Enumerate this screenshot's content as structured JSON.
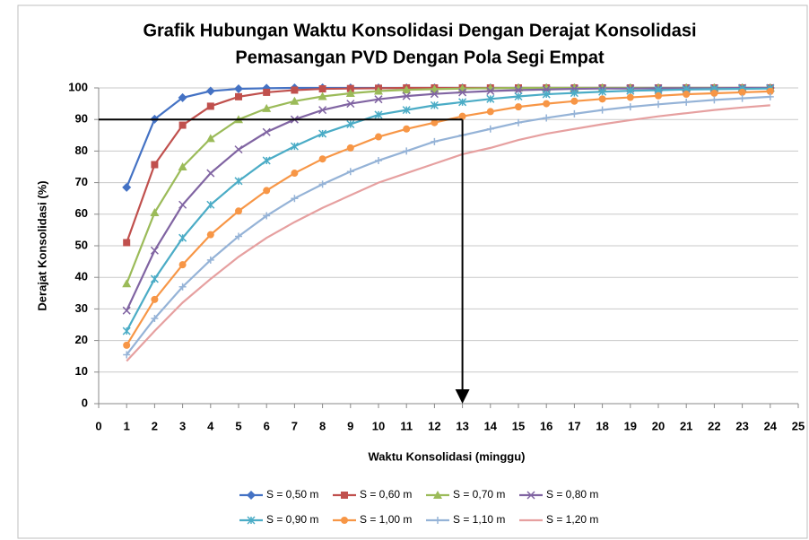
{
  "chart_data": {
    "type": "line",
    "title": [
      "Grafik Hubungan Waktu Konsolidasi Dengan  Derajat Konsolidasi",
      "Pemasangan PVD Dengan Pola Segi Empat"
    ],
    "x_label": "Waktu Konsolidasi (minggu)",
    "y_label": "Derajat Konsolidasi (%)",
    "x": [
      1,
      2,
      3,
      4,
      5,
      6,
      7,
      8,
      9,
      10,
      11,
      12,
      13,
      14,
      15,
      16,
      17,
      18,
      19,
      20,
      21,
      22,
      23,
      24
    ],
    "xlim": [
      0,
      25
    ],
    "xticks": [
      0,
      1,
      2,
      3,
      4,
      5,
      6,
      7,
      8,
      9,
      10,
      11,
      12,
      13,
      14,
      15,
      16,
      17,
      18,
      19,
      20,
      21,
      22,
      23,
      24,
      25
    ],
    "ylim": [
      0,
      100
    ],
    "yticks": [
      0,
      10,
      20,
      30,
      40,
      50,
      60,
      70,
      80,
      90,
      100
    ],
    "grid": true,
    "series": [
      {
        "name": "S = 0,50 m",
        "color": "#4472c4",
        "marker": "diamond",
        "values": [
          68.5,
          90.1,
          96.9,
          99.0,
          99.7,
          99.9,
          100,
          100,
          100,
          100,
          100,
          100,
          100,
          100,
          100,
          100,
          100,
          100,
          100,
          100,
          100,
          100,
          100,
          100
        ]
      },
      {
        "name": "S = 0,60 m",
        "color": "#c0504d",
        "marker": "square",
        "values": [
          51,
          75.7,
          88.2,
          94.2,
          97.2,
          98.6,
          99.3,
          99.7,
          99.8,
          99.9,
          100,
          100,
          100,
          100,
          100,
          100,
          100,
          100,
          100,
          100,
          100,
          100,
          100,
          100
        ]
      },
      {
        "name": "S = 0,70 m",
        "color": "#9bbb59",
        "marker": "triangle",
        "values": [
          38,
          60.5,
          75,
          84,
          90,
          93.5,
          95.8,
          97.3,
          98.3,
          99,
          99.4,
          99.6,
          99.8,
          99.9,
          100,
          100,
          100,
          100,
          100,
          100,
          100,
          100,
          100,
          100
        ]
      },
      {
        "name": "S = 0,80 m",
        "color": "#8064a2",
        "marker": "x",
        "values": [
          29.5,
          48.5,
          63,
          73,
          80.5,
          86,
          90,
          93,
          95,
          96.4,
          97.4,
          98.1,
          98.6,
          99,
          99.3,
          99.5,
          99.7,
          99.8,
          99.8,
          99.9,
          99.9,
          99.9,
          100,
          100
        ]
      },
      {
        "name": "S = 0,90 m",
        "color": "#4bacc6",
        "marker": "star",
        "values": [
          23,
          39.5,
          52.5,
          63,
          70.5,
          77,
          81.5,
          85.5,
          88.5,
          91.5,
          93,
          94.5,
          95.5,
          96.5,
          97.3,
          98,
          98.4,
          98.8,
          99.1,
          99.3,
          99.5,
          99.6,
          99.7,
          99.8
        ]
      },
      {
        "name": "S = 1,00 m",
        "color": "#f79646",
        "marker": "circle",
        "values": [
          18.5,
          33,
          44,
          53.5,
          61,
          67.5,
          73,
          77.5,
          81,
          84.5,
          87,
          89,
          91,
          92.5,
          94,
          95,
          95.8,
          96.5,
          97,
          97.5,
          98,
          98.3,
          98.6,
          98.9
        ]
      },
      {
        "name": "S = 1,10 m",
        "color": "#95b3d7",
        "marker": "plus",
        "values": [
          15.5,
          27,
          37,
          45.5,
          53,
          59.5,
          65,
          69.5,
          73.5,
          77,
          80,
          83,
          85,
          87,
          89,
          90.5,
          91.8,
          93,
          94,
          94.8,
          95.5,
          96.2,
          96.7,
          97.2
        ]
      },
      {
        "name": "S = 1,20 m",
        "color": "#e6a0a0",
        "marker": "none",
        "values": [
          13.5,
          23,
          32,
          39.5,
          46.5,
          52.5,
          57.5,
          62,
          66,
          70,
          73,
          76,
          79,
          81,
          83.5,
          85.5,
          87,
          88.5,
          89.8,
          91,
          92,
          93,
          93.8,
          94.5
        ]
      }
    ],
    "guide_x": 13,
    "guide_y": 90,
    "guide_color": "#000000"
  }
}
